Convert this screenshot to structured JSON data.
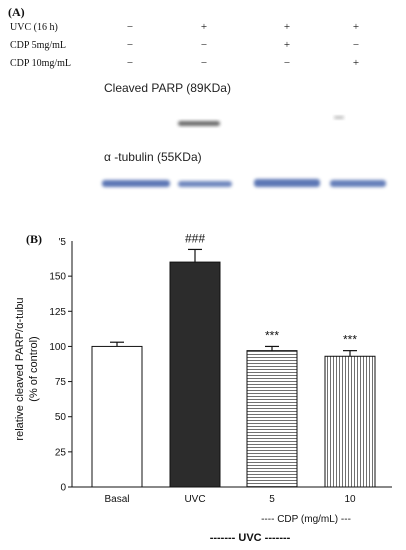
{
  "panel_a": {
    "label": "(A)",
    "conditions": [
      {
        "label": "UVC (16 h)",
        "signs": [
          "−",
          "+",
          "+",
          "+"
        ]
      },
      {
        "label": "CDP 5mg/mL",
        "signs": [
          "−",
          "−",
          "+",
          "−"
        ]
      },
      {
        "label": "CDP 10mg/mL",
        "signs": [
          "−",
          "−",
          "−",
          "+"
        ]
      }
    ],
    "blot_labels": {
      "parp": "Cleaved PARP (89KDa)",
      "tubulin": "α -tubulin (55KDa)"
    },
    "colors": {
      "parp_band": "#3a3a3a",
      "tubulin_band": "#3f5fa8"
    }
  },
  "panel_b": {
    "label": "(B)",
    "footer": {
      "cdp": "---- CDP (mg/mL) ---",
      "uvc": "------- UVC -------"
    }
  },
  "chart_data": {
    "type": "bar",
    "categories": [
      "Basal",
      "UVC",
      "5",
      "10"
    ],
    "values": [
      100,
      160,
      97,
      93
    ],
    "errors": [
      3,
      9,
      3,
      4
    ],
    "significance": [
      "",
      "###",
      "***",
      "***"
    ],
    "fills": [
      "white",
      "dark",
      "hlines",
      "vlines"
    ],
    "ylabel": "relative cleaved PARP/α-tubu",
    "ylabel2": "(% of control)",
    "ylim": [
      0,
      175
    ],
    "yticks": [
      0,
      25,
      50,
      75,
      100,
      125,
      150
    ],
    "ytick_top_label": "'5",
    "grid": false
  }
}
